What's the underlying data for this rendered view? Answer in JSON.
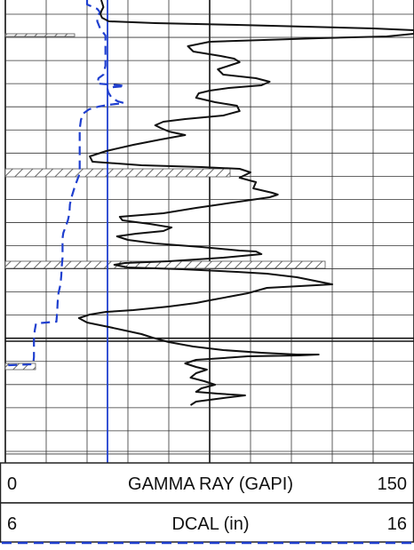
{
  "chart_data": [
    {
      "type": "line",
      "title": "",
      "track": "GAMMA RAY (GAPI)",
      "xlabel": "GAMMA RAY (GAPI)",
      "xlim": [
        0,
        150
      ],
      "scale_left": "0",
      "scale_right": "150",
      "line_style": "solid",
      "color": "#111111",
      "series": [
        {
          "points": [
            [
              35.2,
              0
            ],
            [
              35.6,
              4
            ],
            [
              36.0,
              8
            ],
            [
              35.3,
              12
            ],
            [
              34.9,
              16
            ],
            [
              35.5,
              20
            ],
            [
              38.0,
              24
            ],
            [
              55,
              26
            ],
            [
              85,
              28
            ],
            [
              110,
              30
            ],
            [
              135,
              32
            ],
            [
              150,
              34
            ],
            [
              150,
              38
            ],
            [
              140,
              41
            ],
            [
              115,
              43
            ],
            [
              95,
              45
            ],
            [
              75,
              47
            ],
            [
              67,
              52
            ],
            [
              69,
              58
            ],
            [
              79,
              63
            ],
            [
              84,
              66
            ],
            [
              86,
              70
            ],
            [
              82,
              74
            ],
            [
              78,
              78
            ],
            [
              80,
              84
            ],
            [
              92,
              88
            ],
            [
              97,
              92
            ],
            [
              94,
              96
            ],
            [
              82,
              99
            ],
            [
              75,
              102
            ],
            [
              71,
              105
            ],
            [
              70,
              110
            ],
            [
              77,
              115
            ],
            [
              85,
              119
            ],
            [
              86,
              125
            ],
            [
              80,
              130
            ],
            [
              66,
              134
            ],
            [
              58,
              137
            ],
            [
              55,
              141
            ],
            [
              57,
              144
            ],
            [
              60,
              148
            ],
            [
              66,
              152
            ],
            [
              57,
              157
            ],
            [
              47,
              163
            ],
            [
              37,
              170
            ],
            [
              31,
              176
            ],
            [
              32,
              182
            ],
            [
              50,
              186
            ],
            [
              72,
              188
            ],
            [
              86,
              190
            ],
            [
              90,
              194
            ],
            [
              86,
              200
            ],
            [
              92,
              205
            ],
            [
              91,
              212
            ],
            [
              98,
              217
            ],
            [
              100,
              219
            ],
            [
              97,
              222
            ],
            [
              88,
              226
            ],
            [
              79,
              230
            ],
            [
              70,
              234
            ],
            [
              58,
              240
            ],
            [
              42,
              244
            ],
            [
              43,
              248
            ],
            [
              53,
              252
            ],
            [
              61,
              256
            ],
            [
              58,
              260
            ],
            [
              48,
              263
            ],
            [
              41,
              266
            ],
            [
              45,
              270
            ],
            [
              55,
              274
            ],
            [
              72,
              278
            ],
            [
              86,
              282
            ],
            [
              92,
              283
            ],
            [
              94,
              286
            ],
            [
              80,
              290
            ],
            [
              60,
              294
            ],
            [
              44,
              296
            ],
            [
              40,
              298
            ],
            [
              45,
              301
            ],
            [
              65,
              303
            ],
            [
              85,
              306
            ],
            [
              96,
              308
            ],
            [
              107,
              312
            ],
            [
              120,
              320
            ],
            [
              96,
              324
            ],
            [
              89,
              330
            ],
            [
              82,
              334
            ],
            [
              75,
              338
            ],
            [
              70,
              341
            ],
            [
              60,
              345
            ],
            [
              47,
              349
            ],
            [
              37,
              351
            ],
            [
              31,
              354
            ],
            [
              27,
              358
            ],
            [
              30,
              363
            ],
            [
              38,
              368
            ],
            [
              44,
              372
            ],
            [
              50,
              376
            ],
            [
              54,
              380
            ],
            [
              60,
              385
            ],
            [
              69,
              390
            ],
            [
              80,
              394
            ],
            [
              94,
              397
            ],
            [
              107,
              399
            ],
            [
              115,
              399
            ],
            [
              108,
              400
            ],
            [
              89,
              401
            ],
            [
              80,
              403
            ],
            [
              70,
              405
            ],
            [
              66,
              409
            ],
            [
              70,
              413
            ],
            [
              74,
              416
            ],
            [
              70,
              420
            ],
            [
              68,
              425
            ],
            [
              73,
              429
            ],
            [
              77,
              433
            ],
            [
              72,
              437
            ],
            [
              70,
              441
            ],
            [
              78,
              443
            ],
            [
              88,
              445
            ],
            [
              80,
              448
            ],
            [
              70,
              452
            ],
            [
              68,
              456
            ]
          ]
        }
      ]
    },
    {
      "type": "line",
      "title": "",
      "track": "DCAL (in)",
      "xlabel": "DCAL (in)",
      "xlim": [
        6,
        16
      ],
      "scale_left": "6",
      "scale_right": "16",
      "line_style": "dashed",
      "color": "#1f3fcf",
      "series": [
        {
          "points": [
            [
              8.0,
              0
            ],
            [
              8.0,
              5
            ],
            [
              8.25,
              10
            ],
            [
              8.32,
              14
            ],
            [
              8.25,
              18
            ],
            [
              8.25,
              24
            ],
            [
              8.32,
              32
            ],
            [
              8.45,
              40
            ],
            [
              8.45,
              48
            ],
            [
              8.45,
              58
            ],
            [
              8.45,
              66
            ],
            [
              8.45,
              74
            ],
            [
              8.4,
              84
            ],
            [
              8.28,
              88
            ],
            [
              8.25,
              94
            ],
            [
              8.52,
              95
            ],
            [
              8.8,
              96
            ],
            [
              8.92,
              97
            ],
            [
              8.65,
              98
            ],
            [
              8.5,
              100
            ],
            [
              8.52,
              104
            ],
            [
              8.6,
              110
            ],
            [
              8.75,
              114
            ],
            [
              8.9,
              116
            ],
            [
              8.52,
              118
            ],
            [
              8.28,
              120
            ],
            [
              8.05,
              123
            ],
            [
              7.9,
              128
            ],
            [
              7.85,
              135
            ],
            [
              7.82,
              145
            ],
            [
              7.82,
              155
            ],
            [
              7.82,
              165
            ],
            [
              7.82,
              175
            ],
            [
              7.82,
              185
            ],
            [
              7.82,
              195
            ],
            [
              7.78,
              200
            ],
            [
              7.7,
              210
            ],
            [
              7.62,
              222
            ],
            [
              7.58,
              230
            ],
            [
              7.57,
              238
            ],
            [
              7.55,
              244
            ],
            [
              7.53,
              248
            ],
            [
              7.47,
              256
            ],
            [
              7.42,
              262
            ],
            [
              7.4,
              268
            ],
            [
              7.4,
              280
            ],
            [
              7.4,
              290
            ],
            [
              7.38,
              300
            ],
            [
              7.37,
              310
            ],
            [
              7.35,
              320
            ],
            [
              7.3,
              330
            ],
            [
              7.28,
              340
            ],
            [
              7.27,
              350
            ],
            [
              7.25,
              362
            ],
            [
              7.0,
              363
            ],
            [
              6.75,
              364
            ],
            [
              6.72,
              372
            ],
            [
              6.7,
              382
            ],
            [
              6.7,
              392
            ],
            [
              6.7,
              402
            ],
            [
              6.68,
              410
            ],
            [
              6.1,
              411
            ],
            [
              6.0,
              411
            ]
          ]
        }
      ]
    }
  ],
  "bit_size": {
    "value_in": 8.5,
    "color": "#1f3fcf"
  },
  "washout_zones": [
    {
      "from": 38,
      "to": 41
    },
    {
      "from": 190,
      "to": 199
    },
    {
      "from": 294,
      "to": 302
    },
    {
      "from": 409,
      "to": 416
    }
  ],
  "grid": {
    "shown": true,
    "vertical_divisions": 10,
    "major_every": 5
  },
  "scales": {
    "gamma": {
      "left": "0",
      "label": "GAMMA RAY (GAPI)",
      "right": "150"
    },
    "dcal": {
      "left": "6",
      "label": "DCAL (in)",
      "right": "16"
    }
  }
}
